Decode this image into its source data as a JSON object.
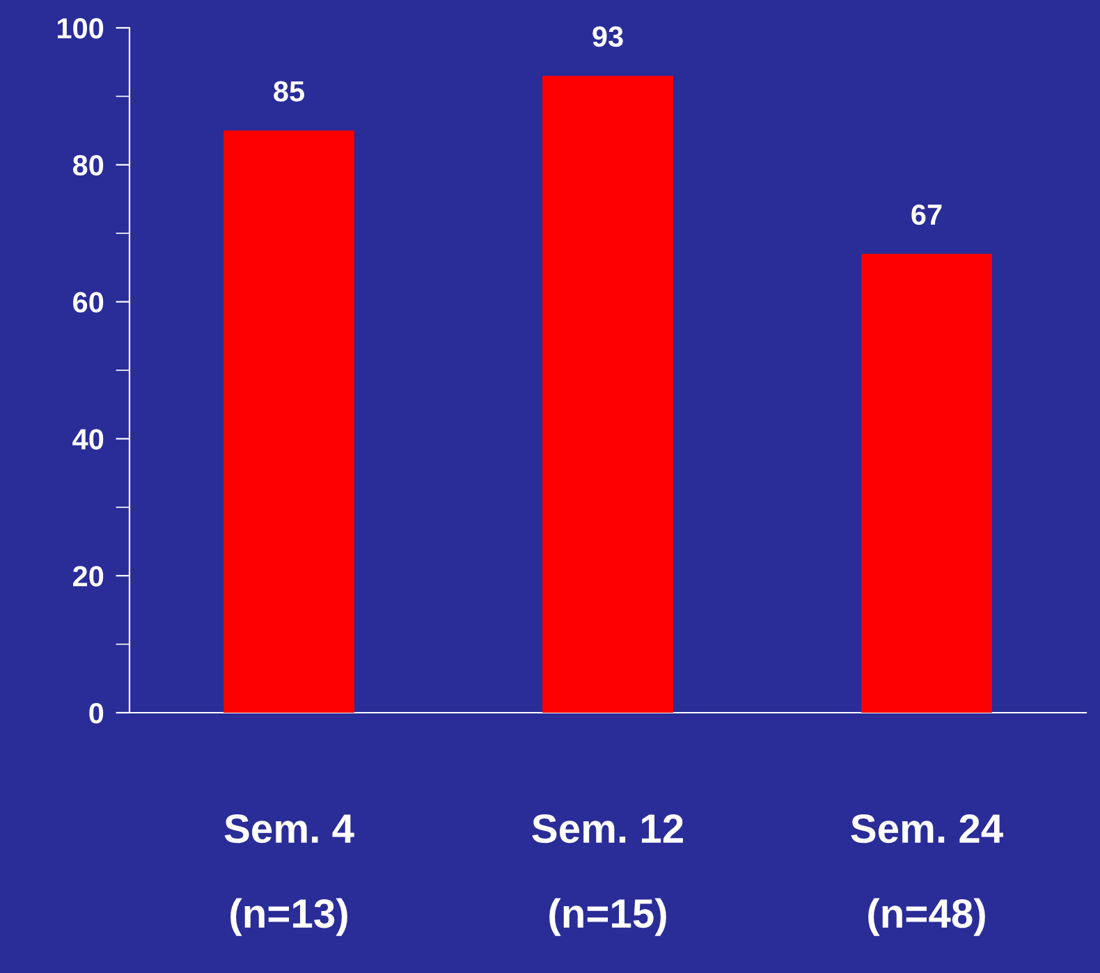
{
  "chart_data": {
    "type": "bar",
    "categories": [
      "Sem. 4\n(n=13)",
      "Sem. 12\n(n=15)",
      "Sem. 24\n(n=48)"
    ],
    "values": [
      85,
      93,
      67
    ],
    "color": "#ff0000",
    "ylim": [
      0,
      100
    ],
    "yticks": [
      0,
      {
        "value": 10,
        "label": null
      },
      20,
      {
        "value": 30,
        "label": null
      },
      40,
      {
        "value": 50,
        "label": null
      },
      60,
      {
        "value": 70,
        "label": null
      },
      80,
      {
        "value": 90,
        "label": null
      },
      100
    ],
    "data_labels": true,
    "grid": false,
    "legend": false
  }
}
